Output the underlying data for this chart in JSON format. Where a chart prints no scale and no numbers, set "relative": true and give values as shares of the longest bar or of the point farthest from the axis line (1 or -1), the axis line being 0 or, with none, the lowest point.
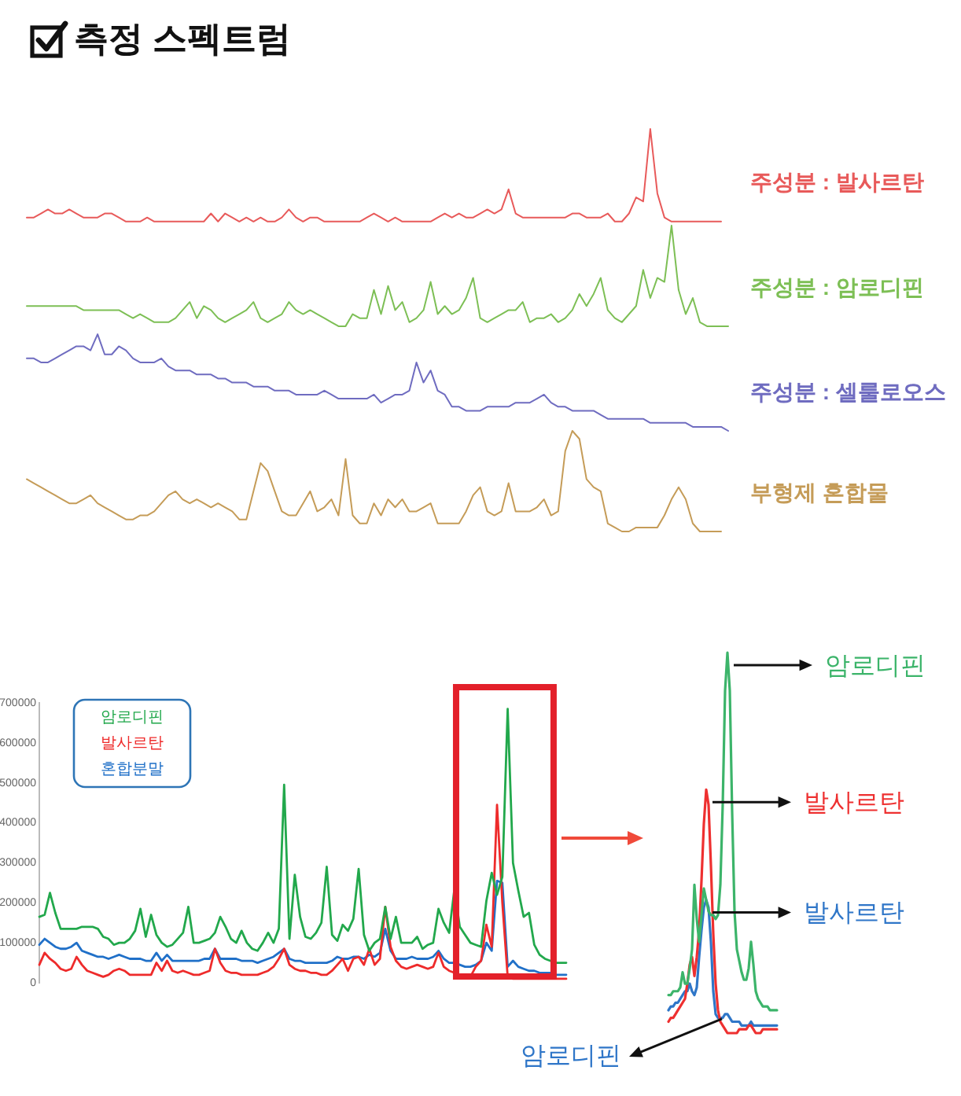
{
  "chart_data": [
    {
      "type": "line",
      "title": "측정 스펙트럼",
      "relative": true,
      "categories": [
        null,
        null,
        null,
        null,
        null,
        null,
        null,
        null,
        null,
        null,
        null,
        null,
        null,
        null,
        null,
        null,
        null,
        null,
        null,
        null,
        null,
        null,
        null,
        null,
        null,
        null,
        null,
        null,
        null,
        null,
        null,
        null,
        null,
        null,
        null,
        null,
        null,
        null,
        null,
        null,
        null,
        null,
        null,
        null,
        null,
        null,
        null,
        null,
        null,
        null,
        null,
        null,
        null,
        null,
        null,
        null,
        null,
        null,
        null,
        null,
        null,
        null,
        null,
        null,
        null,
        null,
        null,
        null,
        null,
        null,
        null,
        null,
        null,
        null,
        null,
        null,
        null,
        null,
        null,
        null,
        null,
        null,
        null,
        null,
        null,
        null,
        null,
        null,
        null,
        null,
        null,
        null,
        null,
        null,
        null,
        null,
        null,
        null,
        null,
        null
      ],
      "series": [
        {
          "name": "주성분 : 발사르탄",
          "color": "#e85a5a",
          "values": [
            0.78,
            0.78,
            0.79,
            0.8,
            0.79,
            0.79,
            0.8,
            0.79,
            0.78,
            0.78,
            0.78,
            0.79,
            0.79,
            0.78,
            0.77,
            0.77,
            0.77,
            0.78,
            0.77,
            0.77,
            0.77,
            0.77,
            0.77,
            0.77,
            0.77,
            0.77,
            0.79,
            0.77,
            0.79,
            0.78,
            0.77,
            0.78,
            0.77,
            0.78,
            0.77,
            0.77,
            0.78,
            0.8,
            0.78,
            0.77,
            0.78,
            0.78,
            0.77,
            0.77,
            0.77,
            0.77,
            0.77,
            0.77,
            0.78,
            0.79,
            0.78,
            0.77,
            0.78,
            0.77,
            0.77,
            0.77,
            0.77,
            0.77,
            0.78,
            0.79,
            0.78,
            0.79,
            0.78,
            0.78,
            0.79,
            0.8,
            0.79,
            0.8,
            0.85,
            0.79,
            0.78,
            0.78,
            0.78,
            0.78,
            0.78,
            0.78,
            0.78,
            0.79,
            0.79,
            0.78,
            0.78,
            0.78,
            0.79,
            0.77,
            0.77,
            0.79,
            0.83,
            0.82,
            1.0,
            0.84,
            0.78,
            0.77,
            0.77,
            0.77,
            0.77,
            0.77,
            0.77,
            0.77,
            0.77,
            null
          ]
        },
        {
          "name": "주성분 : 암로디핀",
          "color": "#7dbf55",
          "values": [
            0.56,
            0.56,
            0.56,
            0.56,
            0.56,
            0.56,
            0.56,
            0.56,
            0.55,
            0.55,
            0.55,
            0.55,
            0.55,
            0.55,
            0.54,
            0.53,
            0.54,
            0.53,
            0.52,
            0.52,
            0.52,
            0.53,
            0.55,
            0.57,
            0.53,
            0.56,
            0.55,
            0.53,
            0.52,
            0.53,
            0.54,
            0.55,
            0.57,
            0.53,
            0.52,
            0.53,
            0.54,
            0.57,
            0.55,
            0.54,
            0.55,
            0.54,
            0.53,
            0.52,
            0.51,
            0.51,
            0.54,
            0.53,
            0.53,
            0.6,
            0.54,
            0.61,
            0.55,
            0.57,
            0.52,
            0.53,
            0.55,
            0.62,
            0.54,
            0.56,
            0.54,
            0.55,
            0.58,
            0.63,
            0.53,
            0.52,
            0.53,
            0.54,
            0.55,
            0.55,
            0.57,
            0.52,
            0.53,
            0.53,
            0.54,
            0.52,
            0.53,
            0.55,
            0.59,
            0.56,
            0.59,
            0.63,
            0.55,
            0.53,
            0.52,
            0.54,
            0.56,
            0.65,
            0.58,
            0.63,
            0.62,
            0.76,
            0.6,
            0.54,
            0.58,
            0.52,
            0.51,
            0.51,
            0.51,
            0.51
          ]
        },
        {
          "name": "주성분 : 셀룰로오스",
          "color": "#6f6cc0",
          "values": [
            0.43,
            0.43,
            0.42,
            0.42,
            0.43,
            0.44,
            0.45,
            0.46,
            0.46,
            0.45,
            0.49,
            0.44,
            0.44,
            0.46,
            0.45,
            0.43,
            0.42,
            0.42,
            0.42,
            0.43,
            0.41,
            0.4,
            0.4,
            0.4,
            0.39,
            0.39,
            0.39,
            0.38,
            0.38,
            0.37,
            0.37,
            0.37,
            0.36,
            0.36,
            0.36,
            0.35,
            0.35,
            0.35,
            0.34,
            0.34,
            0.34,
            0.34,
            0.35,
            0.34,
            0.33,
            0.33,
            0.33,
            0.33,
            0.33,
            0.34,
            0.32,
            0.33,
            0.34,
            0.34,
            0.35,
            0.42,
            0.37,
            0.4,
            0.35,
            0.34,
            0.31,
            0.31,
            0.3,
            0.3,
            0.3,
            0.31,
            0.31,
            0.31,
            0.31,
            0.32,
            0.32,
            0.32,
            0.33,
            0.34,
            0.32,
            0.31,
            0.31,
            0.3,
            0.3,
            0.3,
            0.3,
            0.29,
            0.28,
            0.28,
            0.28,
            0.28,
            0.28,
            0.28,
            0.27,
            0.27,
            0.27,
            0.27,
            0.27,
            0.27,
            0.26,
            0.26,
            0.26,
            0.26,
            0.26,
            0.25
          ]
        },
        {
          "name": "부형제 혼합물",
          "color": "#c59c58",
          "values": [
            0.13,
            0.12,
            0.11,
            0.1,
            0.09,
            0.08,
            0.07,
            0.07,
            0.08,
            0.09,
            0.07,
            0.06,
            0.05,
            0.04,
            0.03,
            0.03,
            0.04,
            0.04,
            0.05,
            0.07,
            0.09,
            0.1,
            0.08,
            0.07,
            0.08,
            0.07,
            0.06,
            0.07,
            0.06,
            0.05,
            0.03,
            0.03,
            0.1,
            0.17,
            0.15,
            0.1,
            0.05,
            0.04,
            0.04,
            0.07,
            0.1,
            0.05,
            0.06,
            0.08,
            0.04,
            0.18,
            0.04,
            0.02,
            0.02,
            0.07,
            0.04,
            0.08,
            0.06,
            0.08,
            0.05,
            0.05,
            0.06,
            0.07,
            0.02,
            0.02,
            0.02,
            0.02,
            0.05,
            0.09,
            0.11,
            0.05,
            0.04,
            0.05,
            0.12,
            0.05,
            0.05,
            0.05,
            0.06,
            0.08,
            0.04,
            0.05,
            0.2,
            0.25,
            0.23,
            0.13,
            0.11,
            0.1,
            0.02,
            0.01,
            0.0,
            0.0,
            0.01,
            0.01,
            0.01,
            0.01,
            0.04,
            0.08,
            0.11,
            0.08,
            0.02,
            0.0,
            0.0,
            0.0,
            0.0,
            null
          ]
        }
      ]
    },
    {
      "type": "line",
      "ylim": [
        0,
        700000
      ],
      "yticks": [
        0,
        100000,
        200000,
        300000,
        400000,
        500000,
        600000,
        700000
      ],
      "legend": "top left",
      "categories": [
        null,
        null,
        null,
        null,
        null,
        null,
        null,
        null,
        null,
        null,
        null,
        null,
        null,
        null,
        null,
        null,
        null,
        null,
        null,
        null,
        null,
        null,
        null,
        null,
        null,
        null,
        null,
        null,
        null,
        null,
        null,
        null,
        null,
        null,
        null,
        null,
        null,
        null,
        null,
        null,
        null,
        null,
        null,
        null,
        null,
        null,
        null,
        null,
        null,
        null,
        null,
        null,
        null,
        null,
        null,
        null,
        null,
        null,
        null,
        null,
        null,
        null,
        null,
        null,
        null,
        null,
        null,
        null,
        null,
        null,
        null,
        null,
        null,
        null,
        null,
        null,
        null,
        null,
        null,
        null,
        null,
        null,
        null,
        null,
        null,
        null,
        null,
        null,
        null,
        null,
        null,
        null,
        null,
        null,
        null,
        null,
        null,
        null,
        null,
        null
      ],
      "series": [
        {
          "name": "암로디핀",
          "color": "#22a84c",
          "values": [
            165000,
            170000,
            225000,
            175000,
            135000,
            135000,
            135000,
            135000,
            140000,
            140000,
            140000,
            135000,
            115000,
            110000,
            95000,
            100000,
            100000,
            110000,
            130000,
            185000,
            115000,
            170000,
            120000,
            100000,
            90000,
            95000,
            110000,
            125000,
            190000,
            100000,
            100000,
            105000,
            110000,
            125000,
            165000,
            140000,
            110000,
            100000,
            130000,
            100000,
            85000,
            80000,
            100000,
            125000,
            100000,
            135000,
            495000,
            110000,
            270000,
            165000,
            115000,
            110000,
            125000,
            150000,
            290000,
            120000,
            105000,
            145000,
            130000,
            160000,
            285000,
            120000,
            80000,
            100000,
            110000,
            190000,
            110000,
            165000,
            100000,
            100000,
            100000,
            115000,
            85000,
            95000,
            100000,
            185000,
            150000,
            125000,
            235000,
            140000,
            120000,
            100000,
            95000,
            90000,
            205000,
            275000,
            220000,
            265000,
            685000,
            300000,
            230000,
            165000,
            175000,
            95000,
            70000,
            60000,
            55000,
            50000,
            50000,
            50000
          ]
        },
        {
          "name": "발사르탄",
          "color": "#ee2b2b",
          "values": [
            45000,
            75000,
            60000,
            50000,
            35000,
            30000,
            35000,
            65000,
            45000,
            30000,
            25000,
            20000,
            15000,
            20000,
            30000,
            35000,
            30000,
            20000,
            20000,
            20000,
            20000,
            20000,
            50000,
            30000,
            55000,
            30000,
            25000,
            30000,
            25000,
            20000,
            20000,
            25000,
            30000,
            85000,
            50000,
            30000,
            25000,
            25000,
            20000,
            20000,
            20000,
            20000,
            25000,
            30000,
            40000,
            60000,
            85000,
            45000,
            35000,
            30000,
            30000,
            25000,
            25000,
            20000,
            20000,
            30000,
            45000,
            60000,
            30000,
            60000,
            65000,
            45000,
            85000,
            45000,
            60000,
            190000,
            90000,
            55000,
            40000,
            35000,
            40000,
            45000,
            40000,
            35000,
            40000,
            75000,
            40000,
            30000,
            25000,
            20000,
            20000,
            15000,
            40000,
            55000,
            145000,
            90000,
            445000,
            200000,
            15000,
            10000,
            10000,
            10000,
            10000,
            10000,
            10000,
            10000,
            10000,
            10000,
            10000,
            10000
          ]
        },
        {
          "name": "혼합분말",
          "color": "#2070c8",
          "values": [
            95000,
            110000,
            100000,
            90000,
            85000,
            85000,
            90000,
            100000,
            80000,
            75000,
            70000,
            65000,
            65000,
            60000,
            65000,
            70000,
            65000,
            60000,
            60000,
            60000,
            55000,
            55000,
            75000,
            55000,
            70000,
            55000,
            55000,
            55000,
            55000,
            55000,
            55000,
            60000,
            60000,
            85000,
            60000,
            60000,
            60000,
            60000,
            55000,
            55000,
            55000,
            50000,
            55000,
            60000,
            65000,
            75000,
            85000,
            60000,
            55000,
            55000,
            50000,
            50000,
            50000,
            50000,
            50000,
            55000,
            65000,
            60000,
            60000,
            65000,
            65000,
            60000,
            70000,
            65000,
            75000,
            135000,
            80000,
            60000,
            60000,
            60000,
            65000,
            60000,
            60000,
            60000,
            65000,
            80000,
            60000,
            50000,
            50000,
            45000,
            40000,
            40000,
            45000,
            55000,
            100000,
            80000,
            255000,
            250000,
            40000,
            55000,
            40000,
            35000,
            30000,
            30000,
            25000,
            25000,
            25000,
            20000,
            20000,
            20000
          ]
        }
      ]
    },
    {
      "type": "line",
      "relative": true,
      "categories": [
        null,
        null,
        null,
        null,
        null,
        null,
        null,
        null,
        null,
        null,
        null,
        null,
        null,
        null,
        null,
        null,
        null,
        null,
        null,
        null,
        null,
        null,
        null,
        null,
        null,
        null,
        null,
        null,
        null,
        null,
        null,
        null,
        null,
        null,
        null,
        null,
        null,
        null,
        null,
        null,
        null,
        null,
        null,
        null,
        null,
        null,
        null
      ],
      "series": [
        {
          "name": "암로디핀",
          "color": "#3cb46a",
          "values": [
            0.1,
            0.1,
            0.11,
            0.11,
            0.11,
            0.12,
            0.16,
            0.13,
            0.13,
            0.17,
            0.22,
            0.39,
            0.3,
            0.24,
            0.31,
            0.38,
            0.35,
            0.32,
            0.31,
            0.31,
            0.3,
            0.31,
            0.39,
            0.6,
            0.9,
            1.0,
            0.9,
            0.58,
            0.32,
            0.22,
            0.19,
            0.16,
            0.14,
            0.14,
            0.17,
            0.24,
            0.18,
            0.11,
            0.09,
            0.08,
            0.07,
            0.07,
            0.07,
            0.06,
            0.06,
            0.06,
            0.06
          ]
        },
        {
          "name": "발사르탄",
          "color": "#ee3030",
          "values": [
            0.03,
            0.04,
            0.04,
            0.05,
            0.06,
            0.07,
            0.08,
            0.09,
            0.13,
            0.18,
            0.2,
            0.15,
            0.2,
            0.27,
            0.4,
            0.55,
            0.64,
            0.6,
            0.44,
            0.26,
            0.13,
            0.06,
            0.03,
            0.02,
            0.01,
            0.0,
            0.0,
            0.0,
            0.0,
            0.0,
            0.01,
            0.01,
            0.01,
            0.01,
            0.02,
            0.02,
            0.01,
            0.0,
            0.0,
            0.0,
            0.01,
            0.01,
            0.01,
            0.01,
            0.01,
            0.01,
            0.01
          ]
        },
        {
          "color": "#2f76c8",
          "values": [
            0.06,
            0.07,
            0.07,
            0.08,
            0.08,
            0.09,
            0.1,
            0.11,
            0.11,
            0.13,
            0.11,
            0.1,
            0.12,
            0.2,
            0.27,
            0.33,
            0.35,
            0.33,
            0.24,
            0.11,
            0.05,
            0.04,
            0.04,
            0.04,
            0.05,
            0.05,
            0.04,
            0.03,
            0.03,
            0.03,
            0.03,
            0.02,
            0.02,
            0.02,
            0.02,
            0.03,
            0.02,
            0.02,
            0.02,
            0.02,
            0.02,
            0.02,
            0.02,
            0.02,
            0.02,
            0.02,
            0.02
          ]
        }
      ],
      "annotations": [
        "발사르탄",
        "암로디핀"
      ]
    }
  ]
}
